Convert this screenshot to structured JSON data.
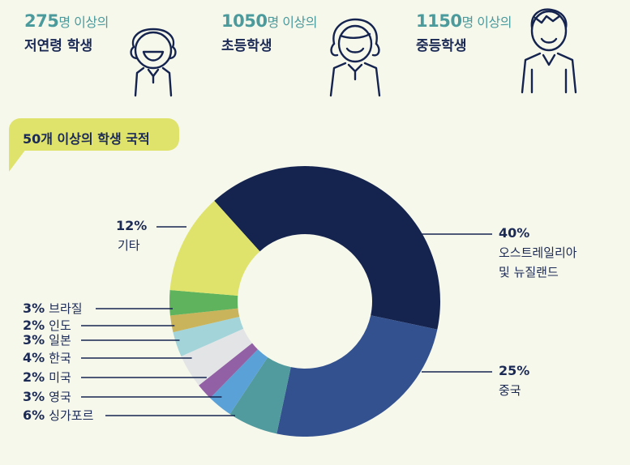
{
  "stats": [
    {
      "number": "275",
      "suffix": "명 이상의",
      "label": "저연령 학생"
    },
    {
      "number": "1050",
      "suffix": "명 이상의",
      "label": "초등학생"
    },
    {
      "number": "1150",
      "suffix": "명 이상의",
      "label": "중등학생"
    }
  ],
  "banner": "50개 이상의 학생 국적",
  "colors": {
    "navy": "#15244f",
    "blue": "#33508f",
    "teal": "#519a9e",
    "sky": "#5aa1d8",
    "purple": "#9160a5",
    "light_gray": "#e3e4e6",
    "light_teal": "#a3d4d9",
    "gold": "#c9b45c",
    "green": "#5fb35c",
    "yellow": "#dfe36c",
    "label_teal": "#4b9a9c"
  },
  "chart_data": {
    "type": "pie",
    "donut": true,
    "categories": [
      "오스트레일리아 및 뉴질랜드",
      "중국",
      "싱가포르",
      "영국",
      "미국",
      "한국",
      "일본",
      "인도",
      "브라질",
      "기타"
    ],
    "values": [
      40,
      25,
      6,
      3,
      2,
      4,
      3,
      2,
      3,
      12
    ],
    "value_labels": [
      "40%",
      "25%",
      "6%",
      "3%",
      "2%",
      "4%",
      "3%",
      "2%",
      "3%",
      "12%"
    ],
    "label_lines": [
      [
        "오스트레일리아",
        "및 뉴질랜드"
      ],
      [
        "중국"
      ],
      [
        "싱가포르"
      ],
      [
        "영국"
      ],
      [
        "미국"
      ],
      [
        "한국"
      ],
      [
        "일본"
      ],
      [
        "인도"
      ],
      [
        "브라질"
      ],
      [
        "기타"
      ]
    ],
    "colors": [
      "#15244f",
      "#33508f",
      "#519a9e",
      "#5aa1d8",
      "#9160a5",
      "#e3e4e6",
      "#a3d4d9",
      "#c9b45c",
      "#5fb35c",
      "#dfe36c"
    ]
  }
}
